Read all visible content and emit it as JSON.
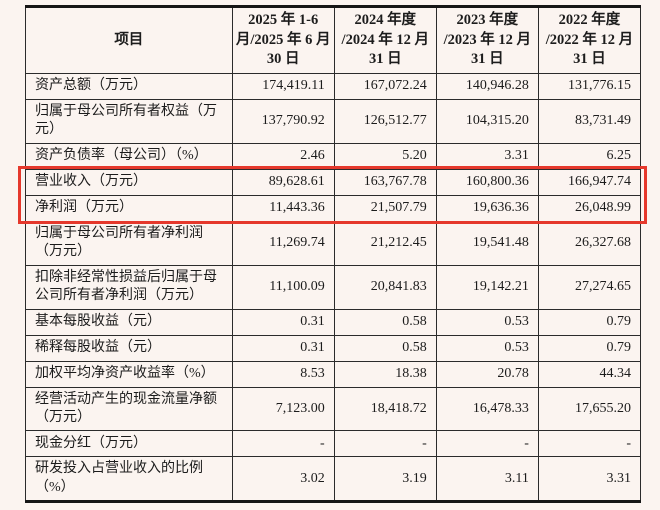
{
  "table": {
    "header": {
      "item_label": "项目",
      "periods": [
        "2025 年 1-6 月/2025 年 6 月 30 日",
        "2024 年度 /2024 年 12 月 31 日",
        "2023 年度 /2023 年 12 月 31 日",
        "2022 年度 /2022 年 12 月 31 日"
      ]
    },
    "rows": [
      {
        "label": "资产总额（万元）",
        "values": [
          "174,419.11",
          "167,072.24",
          "140,946.28",
          "131,776.15"
        ],
        "highlighted": false
      },
      {
        "label": "归属于母公司所有者权益（万元）",
        "values": [
          "137,790.92",
          "126,512.77",
          "104,315.20",
          "83,731.49"
        ],
        "highlighted": false
      },
      {
        "label": "资产负债率（母公司）（%）",
        "values": [
          "2.46",
          "5.20",
          "3.31",
          "6.25"
        ],
        "highlighted": false
      },
      {
        "label": "营业收入（万元）",
        "values": [
          "89,628.61",
          "163,767.78",
          "160,800.36",
          "166,947.74"
        ],
        "highlighted": true
      },
      {
        "label": "净利润（万元）",
        "values": [
          "11,443.36",
          "21,507.79",
          "19,636.36",
          "26,048.99"
        ],
        "highlighted": true
      },
      {
        "label": "归属于母公司所有者净利润（万元）",
        "values": [
          "11,269.74",
          "21,212.45",
          "19,541.48",
          "26,327.68"
        ],
        "highlighted": false
      },
      {
        "label": "扣除非经常性损益后归属于母公司所有者净利润（万元）",
        "values": [
          "11,100.09",
          "20,841.83",
          "19,142.21",
          "27,274.65"
        ],
        "highlighted": false
      },
      {
        "label": "基本每股收益（元）",
        "values": [
          "0.31",
          "0.58",
          "0.53",
          "0.79"
        ],
        "highlighted": false
      },
      {
        "label": "稀释每股收益（元）",
        "values": [
          "0.31",
          "0.58",
          "0.53",
          "0.79"
        ],
        "highlighted": false
      },
      {
        "label": "加权平均净资产收益率（%）",
        "values": [
          "8.53",
          "18.38",
          "20.78",
          "44.34"
        ],
        "highlighted": false
      },
      {
        "label": "经营活动产生的现金流量净额（万元）",
        "values": [
          "7,123.00",
          "18,418.72",
          "16,478.33",
          "17,655.20"
        ],
        "highlighted": false
      },
      {
        "label": "现金分红（万元）",
        "values": [
          "-",
          "-",
          "-",
          "-"
        ],
        "highlighted": false
      },
      {
        "label": "研发投入占营业收入的比例（%）",
        "values": [
          "3.02",
          "3.19",
          "3.11",
          "3.31"
        ],
        "highlighted": false
      }
    ]
  },
  "highlight": {
    "color": "#e5382c",
    "rows": [
      "营业收入（万元）",
      "净利润（万元）"
    ]
  }
}
